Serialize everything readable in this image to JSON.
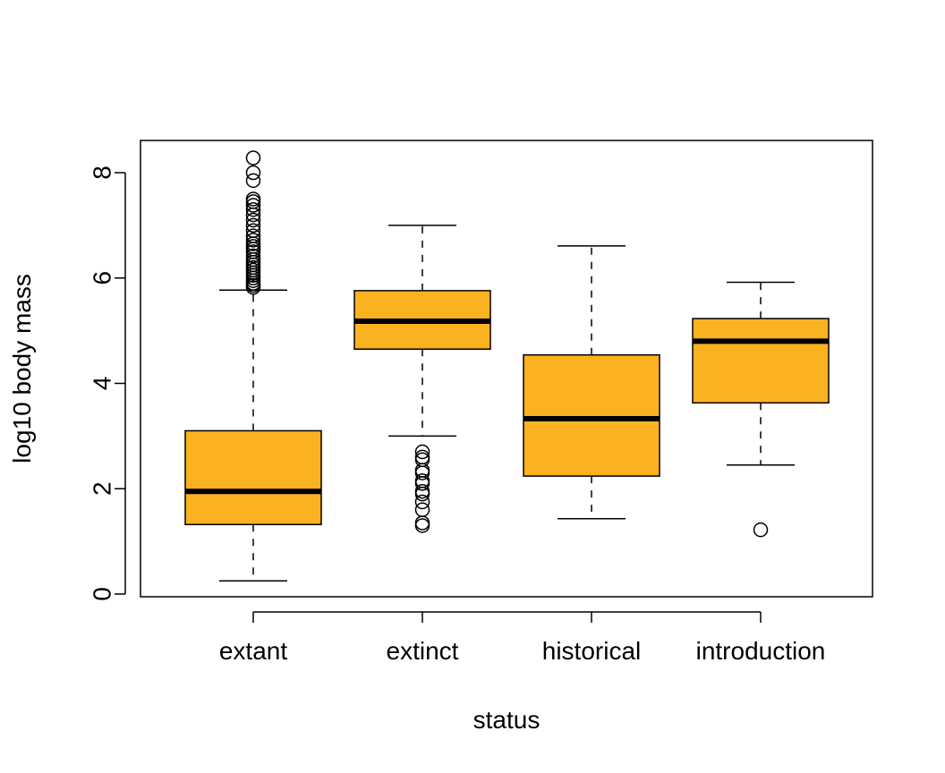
{
  "chart_data": {
    "type": "boxplot",
    "title": "",
    "xlabel": "status",
    "ylabel": "log10 body mass",
    "ylim": [
      0,
      8.5
    ],
    "yticks": [
      0,
      2,
      4,
      6,
      8
    ],
    "grid": false,
    "box_color": "#FBB220",
    "categories": [
      "extant",
      "extinct",
      "historical",
      "introduction"
    ],
    "boxes": [
      {
        "category": "extant",
        "whisker_low": 0.25,
        "q1": 1.32,
        "median": 1.95,
        "q3": 3.1,
        "whisker_high": 5.77,
        "outliers": [
          5.82,
          5.86,
          5.9,
          5.95,
          6.0,
          6.05,
          6.1,
          6.15,
          6.2,
          6.25,
          6.3,
          6.35,
          6.42,
          6.5,
          6.55,
          6.6,
          6.65,
          6.72,
          6.8,
          6.9,
          7.0,
          7.1,
          7.2,
          7.3,
          7.38,
          7.45,
          7.5,
          7.85,
          8.0,
          8.28
        ]
      },
      {
        "category": "extinct",
        "whisker_low": 3.0,
        "q1": 4.65,
        "median": 5.18,
        "q3": 5.76,
        "whisker_high": 7.0,
        "outliers": [
          2.7,
          2.6,
          2.55,
          2.35,
          2.3,
          2.15,
          2.1,
          1.95,
          1.9,
          1.75,
          1.6,
          1.35,
          1.3
        ]
      },
      {
        "category": "historical",
        "whisker_low": 1.43,
        "q1": 2.24,
        "median": 3.33,
        "q3": 4.54,
        "whisker_high": 6.61,
        "outliers": []
      },
      {
        "category": "introduction",
        "whisker_low": 2.45,
        "q1": 3.63,
        "median": 4.8,
        "q3": 5.23,
        "whisker_high": 5.92,
        "outliers": [
          1.22
        ]
      }
    ]
  }
}
